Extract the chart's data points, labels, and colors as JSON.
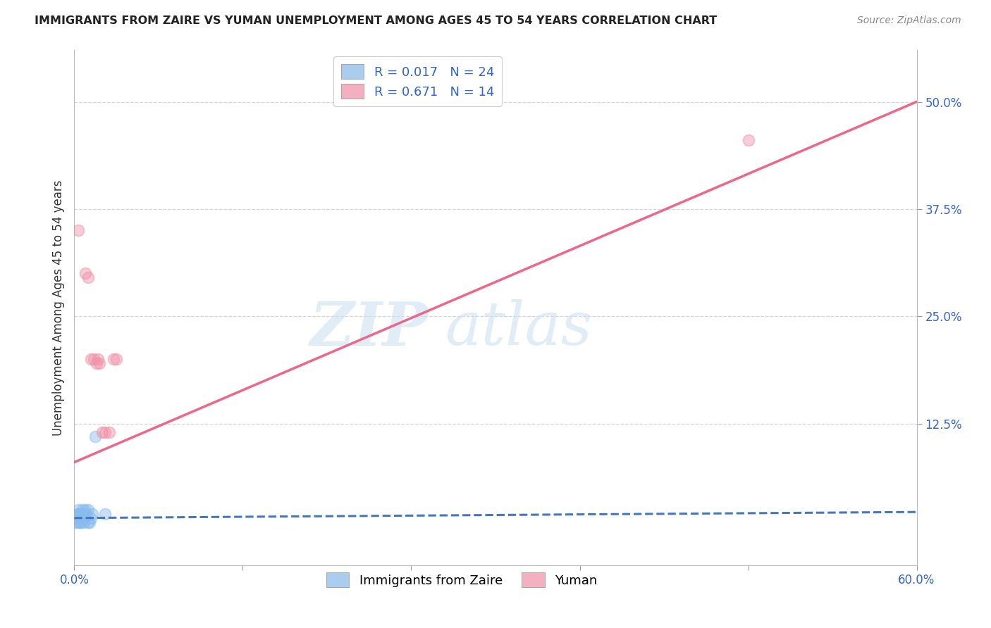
{
  "title": "IMMIGRANTS FROM ZAIRE VS YUMAN UNEMPLOYMENT AMONG AGES 45 TO 54 YEARS CORRELATION CHART",
  "source": "Source: ZipAtlas.com",
  "ylabel": "Unemployment Among Ages 45 to 54 years",
  "xlim": [
    0.0,
    0.6
  ],
  "ylim": [
    -0.04,
    0.56
  ],
  "xticks": [
    0.0,
    0.12,
    0.24,
    0.36,
    0.48,
    0.6
  ],
  "xticklabels": [
    "0.0%",
    "",
    "",
    "",
    "",
    "60.0%"
  ],
  "yticks_right": [
    0.125,
    0.25,
    0.375,
    0.5
  ],
  "yticklabels_right": [
    "12.5%",
    "25.0%",
    "37.5%",
    "50.0%"
  ],
  "watermark_zip": "ZIP",
  "watermark_atlas": "atlas",
  "blue_scatter_x": [
    0.001,
    0.002,
    0.002,
    0.003,
    0.003,
    0.003,
    0.004,
    0.004,
    0.005,
    0.005,
    0.006,
    0.006,
    0.007,
    0.007,
    0.008,
    0.008,
    0.009,
    0.01,
    0.01,
    0.011,
    0.012,
    0.013,
    0.015,
    0.022
  ],
  "blue_scatter_y": [
    0.01,
    0.015,
    0.02,
    0.01,
    0.02,
    0.025,
    0.01,
    0.02,
    0.01,
    0.02,
    0.015,
    0.025,
    0.01,
    0.02,
    0.015,
    0.025,
    0.02,
    0.01,
    0.025,
    0.01,
    0.015,
    0.02,
    0.11,
    0.02
  ],
  "pink_scatter_x": [
    0.003,
    0.008,
    0.01,
    0.012,
    0.014,
    0.016,
    0.017,
    0.018,
    0.02,
    0.022,
    0.025,
    0.028,
    0.03,
    0.48
  ],
  "pink_scatter_y": [
    0.35,
    0.3,
    0.295,
    0.2,
    0.2,
    0.195,
    0.2,
    0.195,
    0.115,
    0.115,
    0.115,
    0.2,
    0.2,
    0.455
  ],
  "blue_line_x": [
    0.0,
    0.6
  ],
  "blue_line_y": [
    0.015,
    0.022
  ],
  "pink_line_x": [
    0.0,
    0.6
  ],
  "pink_line_y": [
    0.08,
    0.5
  ],
  "blue_scatter_color": "#88bbee",
  "pink_scatter_color": "#f090a8",
  "blue_line_color": "#4477bb",
  "pink_line_color": "#ee6688",
  "grid_color": "#cccccc",
  "legend_box_blue": "#aaccee",
  "legend_box_pink": "#f4b0c0",
  "r_n_color": "#3366cc",
  "bottom_legend_blue_label": "Immigrants from Zaire",
  "bottom_legend_pink_label": "Yuman"
}
